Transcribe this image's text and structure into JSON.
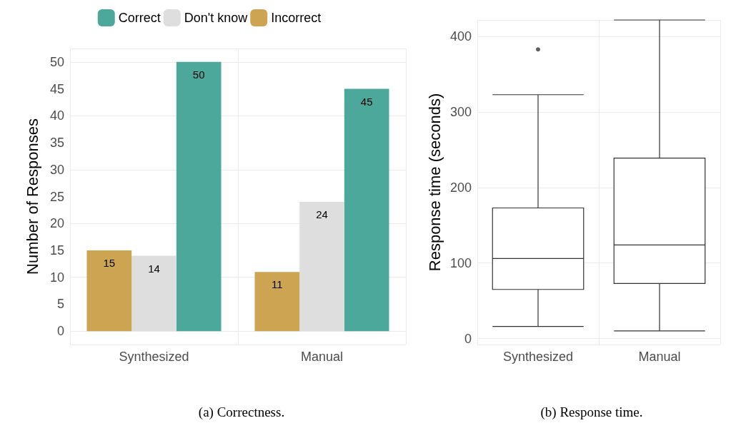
{
  "chart_data": [
    {
      "type": "bar",
      "ylabel": "Number of Responses",
      "categories": [
        "Synthesized",
        "Manual"
      ],
      "series": [
        {
          "name": "Correct",
          "color": "#4da89c",
          "values": [
            50,
            45
          ]
        },
        {
          "name": "Don't know",
          "color": "#dedede",
          "values": [
            14,
            24
          ]
        },
        {
          "name": "Incorrect",
          "color": "#cda552",
          "values": [
            15,
            11
          ]
        }
      ],
      "ylim": [
        -2.5,
        52.5
      ],
      "yticks": [
        0,
        5,
        10,
        15,
        20,
        25,
        30,
        35,
        40,
        45,
        50
      ],
      "grid": true,
      "legend": "top",
      "data_labels": true,
      "annotations": [
        "(a) Correctness."
      ]
    },
    {
      "type": "box",
      "ylabel": "Response time (seconds)",
      "categories": [
        "Synthesized",
        "Manual"
      ],
      "boxes": [
        {
          "low": 16,
          "q1": 65,
          "median": 106,
          "q3": 173,
          "high": 323,
          "outliers": [
            383
          ]
        },
        {
          "low": 10,
          "q1": 73,
          "median": 124,
          "q3": 239,
          "high": 422
        }
      ],
      "ylim": [
        -8,
        422
      ],
      "yticks": [
        0,
        100,
        200,
        300,
        400
      ],
      "grid": true,
      "annotations": [
        "(b) Response time."
      ]
    }
  ]
}
